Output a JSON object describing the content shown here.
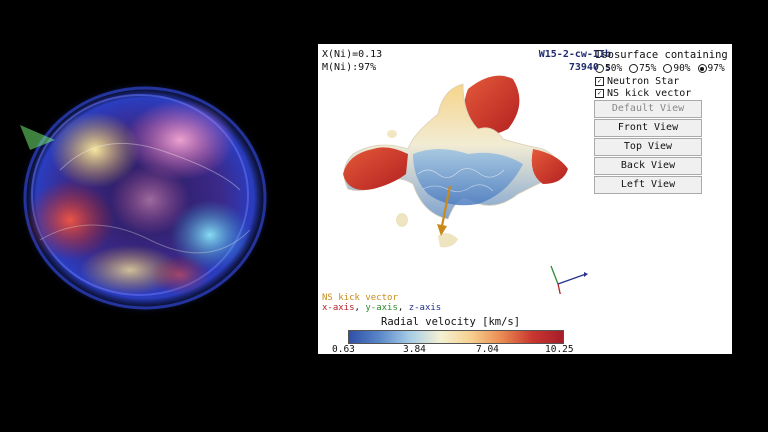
{
  "stats": {
    "x_ni": "X(Ni)=0.13",
    "m_ni": "M(Ni):97%"
  },
  "model": {
    "name": "W15-2-cw-IIb",
    "time": "73940 s"
  },
  "isosurface": {
    "title": "Isosurface containing",
    "options": [
      {
        "label": "50%",
        "selected": false
      },
      {
        "label": "75%",
        "selected": false
      },
      {
        "label": "90%",
        "selected": false
      },
      {
        "label": "97%",
        "selected": true
      }
    ]
  },
  "toggles": {
    "neutron_star": {
      "label": "Neutron Star",
      "checked": true
    },
    "kick_vector": {
      "label": "NS kick vector",
      "checked": true
    }
  },
  "views": {
    "default": "Default View",
    "front": "Front View",
    "top": "Top View",
    "back": "Back View",
    "left": "Left View"
  },
  "legend": {
    "kick": "NS kick vector",
    "x_axis": "x-axis",
    "y_axis": "y-axis",
    "z_axis": "z-axis",
    "sep": ", "
  },
  "colorbar": {
    "title": "Radial velocity [km/s]",
    "ticks": [
      "0.63",
      "3.84",
      "7.04",
      "10.25"
    ]
  },
  "colors": {
    "kick": "#c98a1b",
    "x_axis": "#b3232a",
    "y_axis": "#2e8b2e",
    "z_axis": "#23338f",
    "title_blue": "#1f2a6e"
  }
}
